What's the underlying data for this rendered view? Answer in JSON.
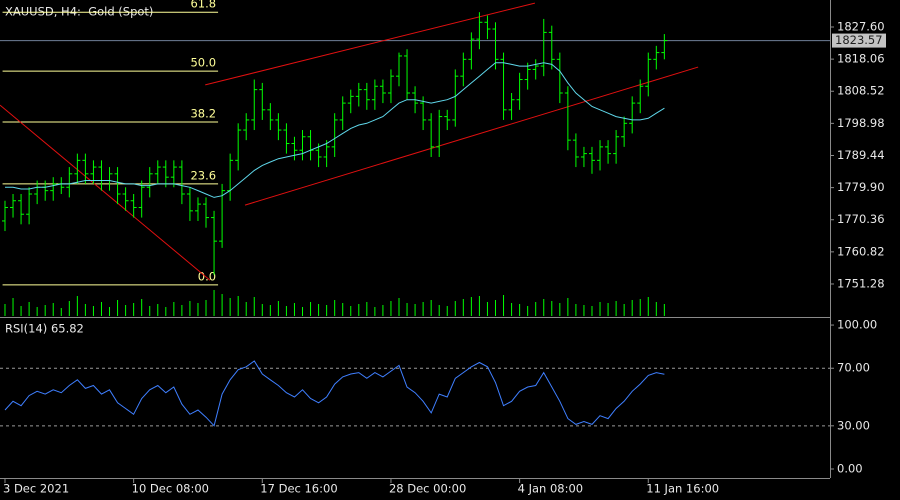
{
  "chart_data": [
    {
      "type": "candlestick",
      "title": "XAUUSD, H4:  Gold (Spot)",
      "color": "#00ff00",
      "ylim": [
        1741.77,
        1835.62
      ],
      "yticks": [
        {
          "value": 1827.6,
          "label": "1827.60"
        },
        1818.06,
        1808.52,
        1798.98,
        1789.44,
        {
          "value": 1779.9,
          "label": "1779.90"
        },
        1770.36,
        1760.82,
        1751.28
      ],
      "xlim": [
        -0.62,
        102.6
      ],
      "xticks": [
        {
          "value": 0,
          "label": "3 Dec 2021"
        },
        {
          "value": 16,
          "label": "10 Dec 08:00"
        },
        {
          "value": 32,
          "label": "17 Dec 16:00"
        },
        {
          "value": 48,
          "label": "28 Dec 00:00"
        },
        {
          "value": 64,
          "label": "4 Jan 08:00"
        },
        {
          "value": 80,
          "label": "11 Jan 16:00"
        }
      ],
      "last_price": 1823.57,
      "open": [
        1770,
        1774,
        1776,
        1772,
        1778,
        1780,
        1779,
        1781,
        1780,
        1784,
        1788,
        1784,
        1786,
        1782,
        1784,
        1778,
        1776,
        1774,
        1780,
        1784,
        1786,
        1783,
        1786,
        1778,
        1773,
        1775,
        1771,
        1764,
        1779,
        1788,
        1797,
        1800,
        1809,
        1803,
        1800,
        1797,
        1793,
        1791,
        1795,
        1791,
        1789,
        1792,
        1800,
        1805,
        1807,
        1809,
        1806,
        1810,
        1808,
        1813,
        1819,
        1808,
        1805,
        1800,
        1792,
        1801,
        1800,
        1813,
        1818,
        1824,
        1829,
        1827,
        1818,
        1803,
        1806,
        1812,
        1815,
        1816,
        1826,
        1818,
        1808,
        1794,
        1789,
        1790,
        1788,
        1792,
        1790,
        1795,
        1799,
        1805,
        1810,
        1818,
        1820
      ],
      "high": [
        1776,
        1778,
        1778,
        1780,
        1782,
        1782,
        1783,
        1783,
        1786,
        1790,
        1790,
        1788,
        1788,
        1786,
        1786,
        1780,
        1778,
        1782,
        1786,
        1788,
        1788,
        1788,
        1788,
        1780,
        1777,
        1777,
        1773,
        1781,
        1790,
        1799,
        1802,
        1812,
        1811,
        1805,
        1802,
        1799,
        1795,
        1797,
        1797,
        1793,
        1794,
        1802,
        1807,
        1809,
        1811,
        1811,
        1812,
        1812,
        1815,
        1820,
        1821,
        1810,
        1807,
        1802,
        1803,
        1803,
        1815,
        1820,
        1826,
        1832,
        1831,
        1829,
        1820,
        1808,
        1814,
        1817,
        1818,
        1830,
        1828,
        1820,
        1810,
        1796,
        1792,
        1792,
        1794,
        1794,
        1797,
        1801,
        1807,
        1812,
        1820,
        1822,
        1825.5
      ],
      "low": [
        1767,
        1771,
        1769,
        1769,
        1775,
        1776,
        1776,
        1778,
        1777,
        1781,
        1781,
        1781,
        1779,
        1779,
        1775,
        1773,
        1771,
        1771,
        1777,
        1781,
        1780,
        1780,
        1775,
        1770,
        1770,
        1768,
        1754,
        1762,
        1776,
        1785,
        1794,
        1797,
        1800,
        1797,
        1794,
        1790,
        1788,
        1788,
        1788,
        1786,
        1786,
        1789,
        1797,
        1802,
        1804,
        1803,
        1803,
        1805,
        1805,
        1810,
        1806,
        1802,
        1797,
        1789,
        1789,
        1797,
        1798,
        1810,
        1815,
        1821,
        1824,
        1815,
        1800,
        1800,
        1803,
        1809,
        1812,
        1813,
        1815,
        1805,
        1791,
        1786,
        1786,
        1784,
        1785,
        1787,
        1787,
        1792,
        1796,
        1802,
        1807,
        1815,
        1818
      ],
      "close": [
        1774,
        1776,
        1772,
        1778,
        1780,
        1779,
        1781,
        1780,
        1784,
        1788,
        1784,
        1786,
        1782,
        1784,
        1778,
        1776,
        1774,
        1780,
        1784,
        1786,
        1783,
        1786,
        1778,
        1773,
        1775,
        1771,
        1764,
        1779,
        1788,
        1797,
        1800,
        1809,
        1803,
        1800,
        1797,
        1793,
        1791,
        1795,
        1791,
        1789,
        1792,
        1800,
        1805,
        1807,
        1809,
        1806,
        1810,
        1808,
        1813,
        1819,
        1808,
        1805,
        1800,
        1792,
        1801,
        1800,
        1813,
        1818,
        1824,
        1829,
        1827,
        1818,
        1803,
        1806,
        1812,
        1815,
        1816,
        1826,
        1818,
        1808,
        1794,
        1789,
        1790,
        1788,
        1792,
        1790,
        1795,
        1799,
        1805,
        1810,
        1818,
        1820,
        1823.57
      ],
      "ma": {
        "color": "#5fd7ea",
        "values": [
          1780,
          1780,
          1779.5,
          1779.5,
          1780,
          1780,
          1780.5,
          1781,
          1781,
          1781.5,
          1782,
          1782,
          1782,
          1782,
          1781.5,
          1781,
          1781,
          1780.5,
          1780.5,
          1781,
          1781,
          1781,
          1780.5,
          1780,
          1779,
          1778,
          1777,
          1777.5,
          1779,
          1781,
          1783,
          1785,
          1786.5,
          1787.5,
          1788.5,
          1789,
          1789.5,
          1790,
          1791,
          1792,
          1793,
          1794.5,
          1796,
          1797.5,
          1798.5,
          1799,
          1800,
          1801,
          1803,
          1805,
          1806,
          1806,
          1805.5,
          1805,
          1805.5,
          1806,
          1807,
          1809,
          1811,
          1813,
          1815,
          1817,
          1817,
          1816.5,
          1816,
          1816,
          1816.5,
          1817,
          1816.5,
          1814.5,
          1811,
          1808,
          1806,
          1804,
          1803,
          1802,
          1801,
          1800.5,
          1800,
          1800,
          1800.5,
          1802,
          1803.5
        ]
      },
      "volume": {
        "color": "#00ff00",
        "values": [
          12,
          18,
          10,
          14,
          9,
          11,
          13,
          8,
          15,
          20,
          12,
          10,
          14,
          9,
          16,
          11,
          13,
          17,
          10,
          12,
          9,
          14,
          11,
          15,
          13,
          16,
          26,
          22,
          18,
          20,
          14,
          19,
          12,
          11,
          15,
          10,
          13,
          9,
          14,
          12,
          11,
          16,
          13,
          10,
          12,
          14,
          9,
          11,
          15,
          18,
          13,
          12,
          14,
          16,
          11,
          10,
          15,
          17,
          19,
          20,
          14,
          16,
          21,
          13,
          12,
          10,
          14,
          17,
          15,
          13,
          18,
          12,
          11,
          10,
          14,
          13,
          15,
          12,
          16,
          17,
          19,
          14,
          12
        ]
      },
      "fibonacci": {
        "color": "#ffff99",
        "start": -0.3,
        "end": 26.5,
        "levels": [
          {
            "label": "61.8",
            "price": 1832
          },
          {
            "label": "50.0",
            "price": 1814.5
          },
          {
            "label": "38.2",
            "price": 1799.4
          },
          {
            "label": "23.6",
            "price": 1781
          },
          {
            "label": "0.0",
            "price": 1751
          }
        ]
      },
      "trendlines": [
        {
          "color": "#e01010",
          "points": [
            [
              -0.62,
              1804.4
            ],
            [
              25.5,
              1752.4
            ]
          ]
        },
        {
          "color": "#e01010",
          "points": [
            [
              24.9,
              1810.4
            ],
            [
              65.9,
              1834.7
            ]
          ]
        },
        {
          "color": "#e01010",
          "points": [
            [
              29.85,
              1774.7
            ],
            [
              86.2,
              1815.7
            ]
          ]
        }
      ]
    },
    {
      "type": "line",
      "title": "RSI(14) 65.82",
      "color": "#3f7fff",
      "ylim": [
        -6.25,
        104.9
      ],
      "yticks": [
        {
          "value": 100,
          "label": "100.00"
        },
        {
          "value": 70,
          "label": "70.00"
        },
        {
          "value": 30,
          "label": "30.00"
        },
        {
          "value": 0,
          "label": "0.00"
        }
      ],
      "levels": [
        70,
        30
      ],
      "values": [
        41,
        47,
        44,
        51,
        54,
        52,
        55,
        53,
        58,
        62,
        56,
        58,
        52,
        55,
        46,
        42,
        38,
        49,
        55,
        58,
        53,
        57,
        45,
        38,
        41,
        36,
        30,
        52,
        62,
        69,
        71,
        75,
        66,
        62,
        58,
        53,
        50,
        55,
        49,
        46,
        50,
        59,
        64,
        66,
        67,
        63,
        67,
        64,
        68,
        72,
        57,
        53,
        47,
        39,
        52,
        50,
        63,
        67,
        71,
        74,
        71,
        60,
        44,
        47,
        54,
        57,
        58,
        67,
        57,
        47,
        35,
        31,
        33,
        31,
        37,
        35,
        42,
        47,
        54,
        59,
        65,
        67,
        65.82
      ]
    }
  ]
}
